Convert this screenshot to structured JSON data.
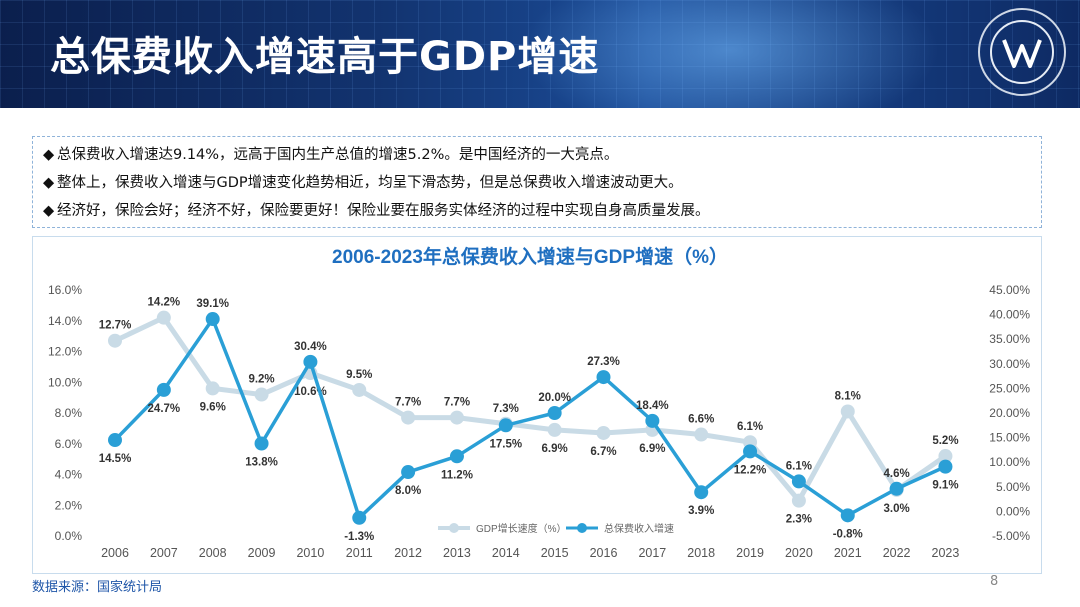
{
  "slide": {
    "title": "总保费收入增速高于GDP增速",
    "bullets": [
      "总保费收入增速达9.14%，远高于国内生产总值的增速5.2%。是中国经济的一大亮点。",
      "整体上，保费收入增速与GDP增速变化趋势相近，均呈下滑态势，但是总保费收入增速波动更大。",
      "经济好，保险会好；经济不好，保险要更好！保险业要在服务实体经济的过程中实现自身高质量发展。"
    ],
    "bullet_marker": "◆",
    "source": "数据来源：国家统计局",
    "page_number": "8",
    "logo_icon": "company-seal-icon"
  },
  "chart_data": {
    "type": "line",
    "title": "2006-2023年总保费收入增速与GDP增速（%）",
    "categories": [
      "2006",
      "2007",
      "2008",
      "2009",
      "2010",
      "2011",
      "2012",
      "2013",
      "2014",
      "2015",
      "2016",
      "2017",
      "2018",
      "2019",
      "2020",
      "2021",
      "2022",
      "2023"
    ],
    "series": [
      {
        "name": "GDP增长速度（%）",
        "axis": "left",
        "color": "#c9dbe6",
        "values": [
          12.7,
          14.2,
          9.6,
          9.2,
          10.6,
          9.5,
          7.7,
          7.7,
          7.3,
          6.9,
          6.7,
          6.9,
          6.6,
          6.1,
          2.3,
          8.1,
          3.0,
          5.2
        ],
        "labels": [
          "12.7%",
          "14.2%",
          "9.6%",
          "9.2%",
          "10.6%",
          "9.5%",
          "7.7%",
          "7.7%",
          "7.3%",
          "6.9%",
          "6.7%",
          "6.9%",
          "6.6%",
          "6.1%",
          "2.3%",
          "8.1%",
          "3.0%",
          "5.2%"
        ]
      },
      {
        "name": "总保费收入增速",
        "axis": "right",
        "color": "#2a9fd6",
        "values": [
          14.5,
          24.7,
          39.1,
          13.8,
          30.4,
          -1.3,
          8.0,
          11.2,
          17.5,
          20.0,
          27.3,
          18.4,
          3.9,
          12.2,
          6.1,
          -0.8,
          4.6,
          9.1
        ],
        "labels": [
          "14.5%",
          "24.7%",
          "39.1%",
          "13.8%",
          "30.4%",
          "-1.3%",
          "8.0%",
          "11.2%",
          "17.5%",
          "20.0%",
          "27.3%",
          "18.4%",
          "3.9%",
          "12.2%",
          "6.1%",
          "-0.8%",
          "4.6%",
          "9.1%"
        ]
      }
    ],
    "y_left": {
      "min": 0,
      "max": 16,
      "step": 2,
      "ticks": [
        "0.0%",
        "2.0%",
        "4.0%",
        "6.0%",
        "8.0%",
        "10.0%",
        "12.0%",
        "14.0%",
        "16.0%"
      ]
    },
    "y_right": {
      "min": -5,
      "max": 45,
      "step": 5,
      "ticks": [
        "-5.00%",
        "0.00%",
        "5.00%",
        "10.00%",
        "15.00%",
        "20.00%",
        "25.00%",
        "30.00%",
        "35.00%",
        "40.00%",
        "45.00%"
      ]
    },
    "legend": "bottom-center",
    "grid": false
  }
}
